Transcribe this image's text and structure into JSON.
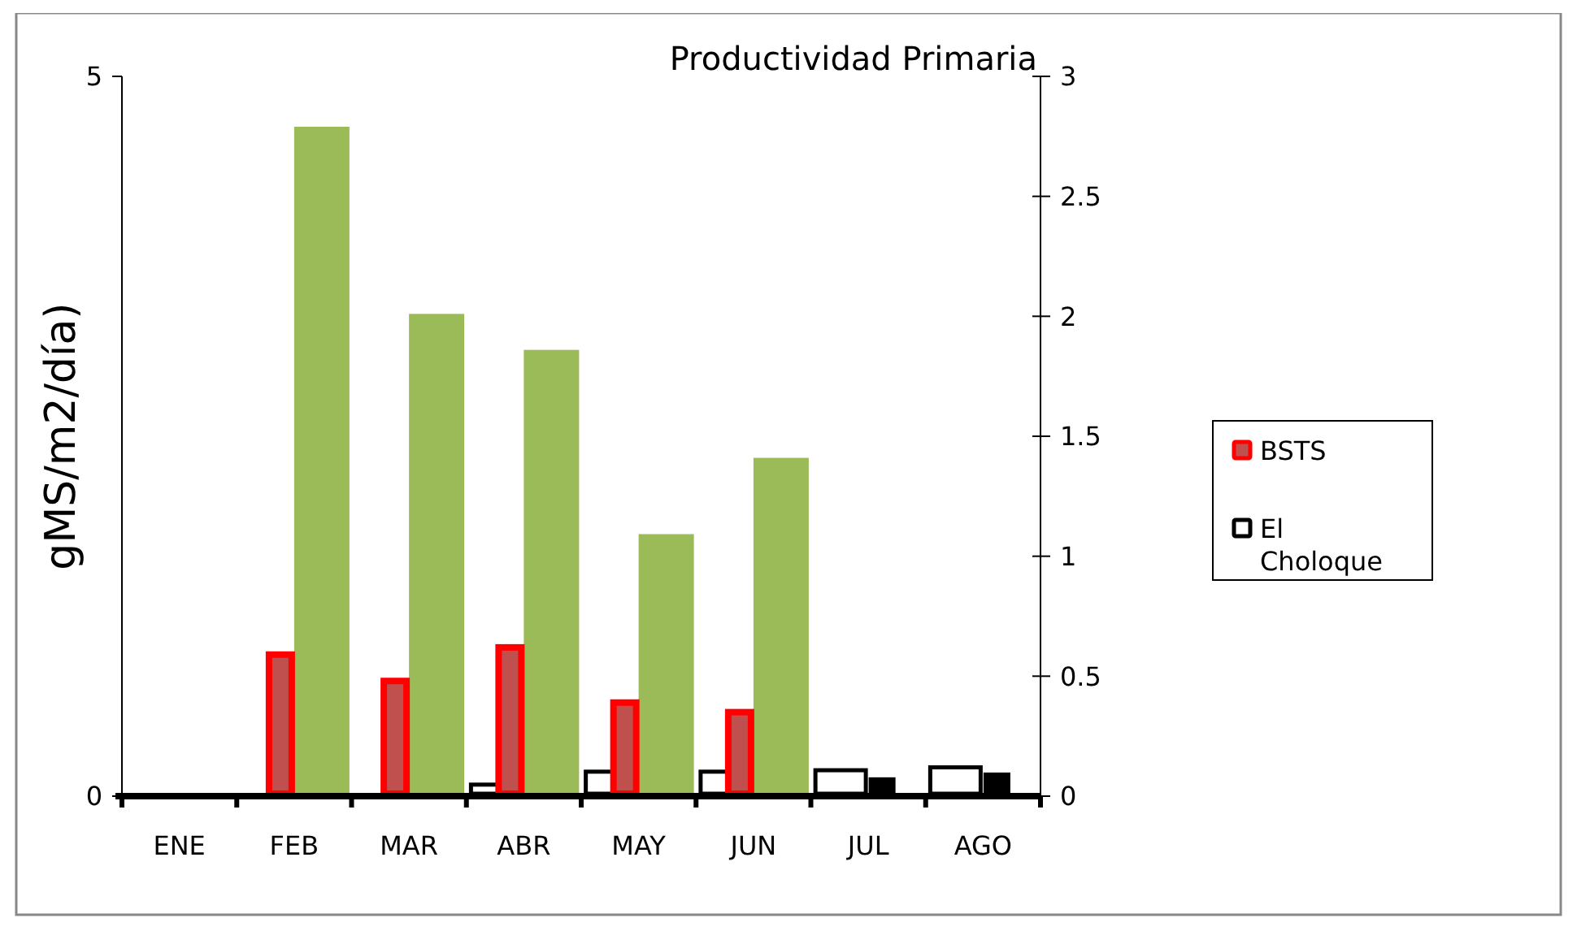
{
  "chart_data": {
    "type": "bar",
    "title": "Productividad Primaria",
    "ylabel": "gMS/m2/día)",
    "categories": [
      "ENE",
      "FEB",
      "MAR",
      "ABR",
      "MAY",
      "JUN",
      "JUL",
      "AGO"
    ],
    "series": [
      {
        "name": "BSTS",
        "color": "#c0504d",
        "axis": "y2",
        "values": [
          0,
          0.59,
          0.48,
          0.62,
          0.39,
          0.35,
          0,
          0
        ]
      },
      {
        "name": "El Choloque",
        "color": "#ffffff",
        "values": [
          0,
          0,
          0,
          0.08,
          0.17,
          0.17,
          0.18,
          0.2
        ]
      },
      {
        "color": "#9bbb59",
        "values": [
          0,
          4.65,
          3.35,
          3.1,
          1.82,
          2.35,
          0,
          0
        ]
      },
      {
        "color": "#000000",
        "axis": "y2",
        "values": [
          0,
          0,
          0,
          0,
          0,
          0,
          0.07,
          0.09
        ]
      }
    ],
    "ylim": [
      0,
      5
    ],
    "yticks": [
      0,
      5
    ],
    "y2lim": [
      0,
      3
    ],
    "y2ticks": [
      0,
      0.5,
      1,
      1.5,
      2,
      2.5,
      3
    ],
    "legend": "right"
  }
}
